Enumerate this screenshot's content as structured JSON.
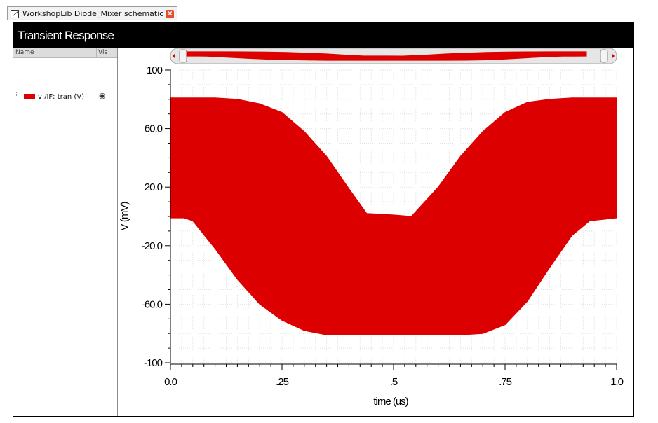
{
  "tab": {
    "label": "WorkshopLib Diode_Mixer schematic",
    "close_icon": "close-icon"
  },
  "window": {
    "title": "Transient Response"
  },
  "panel": {
    "col_name": "Name",
    "col_vis": "Vis",
    "signal_label": "v /IF; tran (V)",
    "signal_color": "#dd0000",
    "vis_icon": "eye-icon"
  },
  "chart_data": {
    "type": "area",
    "title": "Transient Response",
    "xlabel": "time (us)",
    "ylabel": "V (mV)",
    "xlim": [
      0,
      1.0
    ],
    "ylim": [
      -100,
      100
    ],
    "xticks": [
      0,
      0.25,
      0.5,
      0.75,
      1.0
    ],
    "xtick_labels": [
      "0.0",
      ".25",
      ".5",
      ".75",
      "1.0"
    ],
    "yticks": [
      100,
      60,
      20,
      -20,
      -60,
      -100
    ],
    "ytick_labels": [
      "100",
      "60.0",
      "20.0",
      "-20.0",
      "-60.0",
      "-100"
    ],
    "grid": true,
    "series": [
      {
        "name": "v /IF; tran (V)",
        "color": "#dd0000",
        "x": [
          0,
          0.03,
          0.05,
          0.1,
          0.15,
          0.2,
          0.25,
          0.3,
          0.35,
          0.4,
          0.44,
          0.5,
          0.54,
          0.6,
          0.65,
          0.7,
          0.75,
          0.8,
          0.85,
          0.9,
          0.94,
          0.97,
          1.0
        ],
        "upper": [
          81,
          81,
          81,
          81,
          80,
          77,
          71,
          58,
          41,
          19,
          2,
          1,
          0,
          20,
          41,
          58,
          71,
          78,
          80,
          81,
          81,
          81,
          81
        ],
        "lower": [
          -1,
          -1,
          -3,
          -22,
          -43,
          -60,
          -71,
          -78,
          -81,
          -81,
          -81,
          -81,
          -81,
          -81,
          -81,
          -80,
          -74,
          -58,
          -35,
          -13,
          -3,
          -2,
          -1
        ]
      }
    ]
  }
}
